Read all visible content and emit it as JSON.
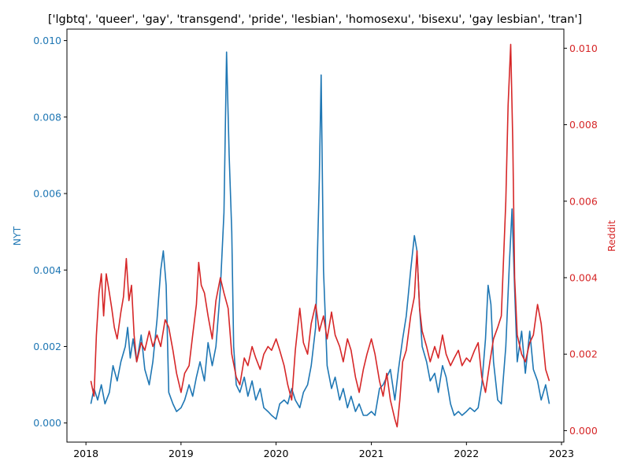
{
  "chart_data": {
    "type": "line",
    "title": "['lgbtq', 'queer', 'gay', 'transgend', 'pride', 'lesbian', 'homosexu', 'bisexu', 'gay lesbian', 'tran']",
    "x_ticks": [
      "2018",
      "2019",
      "2020",
      "2021",
      "2022",
      "2023"
    ],
    "x_range": [
      "2017-10-20",
      "2023-01-10"
    ],
    "left_axis": {
      "label": "NYT",
      "color": "#1f77b4",
      "ylim": [
        -0.0005,
        0.0103
      ],
      "ticks": [
        "0.000",
        "0.002",
        "0.004",
        "0.006",
        "0.008",
        "0.010"
      ]
    },
    "right_axis": {
      "label": "Reddit",
      "color": "#d62728",
      "ylim": [
        -0.0003,
        0.0105
      ],
      "ticks": [
        "0.000",
        "0.002",
        "0.004",
        "0.006",
        "0.008",
        "0.010"
      ]
    },
    "series": [
      {
        "axis": "left",
        "color": "#1f77b4",
        "points": [
          [
            "2018-01-20",
            0.0005
          ],
          [
            "2018-02-01",
            0.0009
          ],
          [
            "2018-02-15",
            0.0006
          ],
          [
            "2018-03-01",
            0.001
          ],
          [
            "2018-03-15",
            0.0005
          ],
          [
            "2018-04-01",
            0.0008
          ],
          [
            "2018-04-15",
            0.0015
          ],
          [
            "2018-05-01",
            0.0011
          ],
          [
            "2018-05-15",
            0.0016
          ],
          [
            "2018-06-01",
            0.002
          ],
          [
            "2018-06-10",
            0.0025
          ],
          [
            "2018-06-20",
            0.0017
          ],
          [
            "2018-07-01",
            0.0022
          ],
          [
            "2018-07-15",
            0.0016
          ],
          [
            "2018-08-01",
            0.0023
          ],
          [
            "2018-08-15",
            0.0014
          ],
          [
            "2018-09-01",
            0.001
          ],
          [
            "2018-09-15",
            0.0016
          ],
          [
            "2018-10-01",
            0.0027
          ],
          [
            "2018-10-15",
            0.004
          ],
          [
            "2018-10-25",
            0.0045
          ],
          [
            "2018-11-05",
            0.0036
          ],
          [
            "2018-11-15",
            0.0008
          ],
          [
            "2018-12-01",
            0.0005
          ],
          [
            "2018-12-15",
            0.0003
          ],
          [
            "2019-01-01",
            0.0004
          ],
          [
            "2019-01-15",
            0.0006
          ],
          [
            "2019-02-01",
            0.001
          ],
          [
            "2019-02-15",
            0.0007
          ],
          [
            "2019-03-01",
            0.0012
          ],
          [
            "2019-03-15",
            0.0016
          ],
          [
            "2019-04-01",
            0.0011
          ],
          [
            "2019-04-15",
            0.0021
          ],
          [
            "2019-05-01",
            0.0015
          ],
          [
            "2019-05-15",
            0.002
          ],
          [
            "2019-06-01",
            0.0035
          ],
          [
            "2019-06-15",
            0.0055
          ],
          [
            "2019-06-25",
            0.0097
          ],
          [
            "2019-07-05",
            0.007
          ],
          [
            "2019-07-15",
            0.005
          ],
          [
            "2019-07-22",
            0.002
          ],
          [
            "2019-08-01",
            0.001
          ],
          [
            "2019-08-15",
            0.0008
          ],
          [
            "2019-09-01",
            0.0012
          ],
          [
            "2019-09-15",
            0.0007
          ],
          [
            "2019-10-01",
            0.0011
          ],
          [
            "2019-10-15",
            0.0006
          ],
          [
            "2019-11-01",
            0.0009
          ],
          [
            "2019-11-15",
            0.0004
          ],
          [
            "2019-12-01",
            0.0003
          ],
          [
            "2019-12-15",
            0.0002
          ],
          [
            "2020-01-01",
            0.0001
          ],
          [
            "2020-01-15",
            0.0005
          ],
          [
            "2020-02-01",
            0.0006
          ],
          [
            "2020-02-15",
            0.0005
          ],
          [
            "2020-03-01",
            0.0009
          ],
          [
            "2020-03-15",
            0.0006
          ],
          [
            "2020-04-01",
            0.0004
          ],
          [
            "2020-04-15",
            0.0008
          ],
          [
            "2020-05-01",
            0.001
          ],
          [
            "2020-05-15",
            0.0015
          ],
          [
            "2020-06-01",
            0.0025
          ],
          [
            "2020-06-15",
            0.0064
          ],
          [
            "2020-06-22",
            0.0091
          ],
          [
            "2020-07-01",
            0.004
          ],
          [
            "2020-07-15",
            0.0015
          ],
          [
            "2020-08-01",
            0.0009
          ],
          [
            "2020-08-15",
            0.0012
          ],
          [
            "2020-09-01",
            0.0006
          ],
          [
            "2020-09-15",
            0.0009
          ],
          [
            "2020-10-01",
            0.0004
          ],
          [
            "2020-10-15",
            0.0007
          ],
          [
            "2020-11-01",
            0.0003
          ],
          [
            "2020-11-15",
            0.0005
          ],
          [
            "2020-12-01",
            0.0002
          ],
          [
            "2020-12-15",
            0.0002
          ],
          [
            "2021-01-01",
            0.0003
          ],
          [
            "2021-01-15",
            0.0002
          ],
          [
            "2021-02-01",
            0.0009
          ],
          [
            "2021-02-15",
            0.001
          ],
          [
            "2021-03-01",
            0.0012
          ],
          [
            "2021-03-15",
            0.0014
          ],
          [
            "2021-04-01",
            0.0006
          ],
          [
            "2021-04-15",
            0.0014
          ],
          [
            "2021-05-01",
            0.0022
          ],
          [
            "2021-05-15",
            0.0028
          ],
          [
            "2021-06-01",
            0.004
          ],
          [
            "2021-06-15",
            0.0049
          ],
          [
            "2021-06-25",
            0.0045
          ],
          [
            "2021-07-05",
            0.003
          ],
          [
            "2021-07-15",
            0.002
          ],
          [
            "2021-08-01",
            0.0016
          ],
          [
            "2021-08-15",
            0.0011
          ],
          [
            "2021-09-01",
            0.0013
          ],
          [
            "2021-09-15",
            0.0008
          ],
          [
            "2021-10-01",
            0.0015
          ],
          [
            "2021-10-15",
            0.0012
          ],
          [
            "2021-11-01",
            0.0005
          ],
          [
            "2021-11-15",
            0.0002
          ],
          [
            "2021-12-01",
            0.0003
          ],
          [
            "2021-12-15",
            0.0002
          ],
          [
            "2022-01-01",
            0.0003
          ],
          [
            "2022-01-15",
            0.0004
          ],
          [
            "2022-02-01",
            0.0003
          ],
          [
            "2022-02-15",
            0.0004
          ],
          [
            "2022-03-01",
            0.001
          ],
          [
            "2022-03-15",
            0.0022
          ],
          [
            "2022-03-25",
            0.0036
          ],
          [
            "2022-04-05",
            0.0031
          ],
          [
            "2022-04-15",
            0.0016
          ],
          [
            "2022-05-01",
            0.0006
          ],
          [
            "2022-05-15",
            0.0005
          ],
          [
            "2022-06-01",
            0.002
          ],
          [
            "2022-06-15",
            0.0042
          ],
          [
            "2022-06-25",
            0.0056
          ],
          [
            "2022-07-05",
            0.0035
          ],
          [
            "2022-07-15",
            0.0016
          ],
          [
            "2022-08-01",
            0.0024
          ],
          [
            "2022-08-15",
            0.0013
          ],
          [
            "2022-09-01",
            0.0024
          ],
          [
            "2022-09-15",
            0.0014
          ],
          [
            "2022-10-01",
            0.0011
          ],
          [
            "2022-10-15",
            0.0006
          ],
          [
            "2022-11-01",
            0.001
          ],
          [
            "2022-11-15",
            0.0005
          ]
        ]
      },
      {
        "axis": "right",
        "color": "#d62728",
        "points": [
          [
            "2018-01-20",
            0.0013
          ],
          [
            "2018-02-01",
            0.0009
          ],
          [
            "2018-02-10",
            0.0025
          ],
          [
            "2018-02-20",
            0.0036
          ],
          [
            "2018-03-01",
            0.0041
          ],
          [
            "2018-03-10",
            0.003
          ],
          [
            "2018-03-20",
            0.0041
          ],
          [
            "2018-04-01",
            0.0036
          ],
          [
            "2018-04-10",
            0.0032
          ],
          [
            "2018-04-20",
            0.0027
          ],
          [
            "2018-05-01",
            0.0024
          ],
          [
            "2018-05-15",
            0.0031
          ],
          [
            "2018-05-25",
            0.0035
          ],
          [
            "2018-06-05",
            0.0045
          ],
          [
            "2018-06-15",
            0.0034
          ],
          [
            "2018-06-25",
            0.0038
          ],
          [
            "2018-07-05",
            0.0025
          ],
          [
            "2018-07-15",
            0.0018
          ],
          [
            "2018-08-01",
            0.0023
          ],
          [
            "2018-08-15",
            0.0021
          ],
          [
            "2018-09-01",
            0.0026
          ],
          [
            "2018-09-15",
            0.0022
          ],
          [
            "2018-10-01",
            0.0025
          ],
          [
            "2018-10-15",
            0.0022
          ],
          [
            "2018-11-01",
            0.0029
          ],
          [
            "2018-11-15",
            0.0027
          ],
          [
            "2018-12-01",
            0.0021
          ],
          [
            "2018-12-15",
            0.0015
          ],
          [
            "2019-01-01",
            0.001
          ],
          [
            "2019-01-15",
            0.0015
          ],
          [
            "2019-02-01",
            0.0017
          ],
          [
            "2019-02-15",
            0.0025
          ],
          [
            "2019-03-01",
            0.0033
          ],
          [
            "2019-03-10",
            0.0044
          ],
          [
            "2019-03-20",
            0.0038
          ],
          [
            "2019-04-01",
            0.0036
          ],
          [
            "2019-04-15",
            0.003
          ],
          [
            "2019-05-01",
            0.0024
          ],
          [
            "2019-05-15",
            0.0034
          ],
          [
            "2019-06-01",
            0.004
          ],
          [
            "2019-06-15",
            0.0036
          ],
          [
            "2019-07-01",
            0.0032
          ],
          [
            "2019-07-15",
            0.002
          ],
          [
            "2019-08-01",
            0.0014
          ],
          [
            "2019-08-15",
            0.0012
          ],
          [
            "2019-09-01",
            0.0019
          ],
          [
            "2019-09-15",
            0.0017
          ],
          [
            "2019-10-01",
            0.0022
          ],
          [
            "2019-10-15",
            0.0019
          ],
          [
            "2019-11-01",
            0.0016
          ],
          [
            "2019-11-15",
            0.002
          ],
          [
            "2019-12-01",
            0.0022
          ],
          [
            "2019-12-15",
            0.0021
          ],
          [
            "2020-01-01",
            0.0024
          ],
          [
            "2020-01-15",
            0.0021
          ],
          [
            "2020-02-01",
            0.0017
          ],
          [
            "2020-02-15",
            0.0012
          ],
          [
            "2020-03-01",
            0.0008
          ],
          [
            "2020-03-15",
            0.0021
          ],
          [
            "2020-04-01",
            0.0032
          ],
          [
            "2020-04-15",
            0.0023
          ],
          [
            "2020-05-01",
            0.002
          ],
          [
            "2020-05-15",
            0.0028
          ],
          [
            "2020-06-01",
            0.0033
          ],
          [
            "2020-06-15",
            0.0026
          ],
          [
            "2020-07-01",
            0.003
          ],
          [
            "2020-07-15",
            0.0024
          ],
          [
            "2020-08-01",
            0.0031
          ],
          [
            "2020-08-15",
            0.0025
          ],
          [
            "2020-09-01",
            0.0022
          ],
          [
            "2020-09-15",
            0.0018
          ],
          [
            "2020-10-01",
            0.0024
          ],
          [
            "2020-10-15",
            0.0021
          ],
          [
            "2020-11-01",
            0.0014
          ],
          [
            "2020-11-15",
            0.001
          ],
          [
            "2020-12-01",
            0.0016
          ],
          [
            "2020-12-15",
            0.002
          ],
          [
            "2021-01-01",
            0.0024
          ],
          [
            "2021-01-15",
            0.002
          ],
          [
            "2021-02-01",
            0.0013
          ],
          [
            "2021-02-15",
            0.0009
          ],
          [
            "2021-03-01",
            0.0015
          ],
          [
            "2021-03-15",
            0.0008
          ],
          [
            "2021-04-01",
            0.0003
          ],
          [
            "2021-04-10",
            0.0001
          ],
          [
            "2021-04-20",
            0.0008
          ],
          [
            "2021-05-01",
            0.0018
          ],
          [
            "2021-05-15",
            0.0021
          ],
          [
            "2021-06-01",
            0.003
          ],
          [
            "2021-06-15",
            0.0035
          ],
          [
            "2021-06-25",
            0.0047
          ],
          [
            "2021-07-05",
            0.0032
          ],
          [
            "2021-07-15",
            0.0026
          ],
          [
            "2021-08-01",
            0.0022
          ],
          [
            "2021-08-15",
            0.0018
          ],
          [
            "2021-09-01",
            0.0022
          ],
          [
            "2021-09-15",
            0.0019
          ],
          [
            "2021-10-01",
            0.0025
          ],
          [
            "2021-10-15",
            0.002
          ],
          [
            "2021-11-01",
            0.0017
          ],
          [
            "2021-11-15",
            0.0019
          ],
          [
            "2021-12-01",
            0.0021
          ],
          [
            "2021-12-15",
            0.0017
          ],
          [
            "2022-01-01",
            0.0019
          ],
          [
            "2022-01-15",
            0.0018
          ],
          [
            "2022-02-01",
            0.0021
          ],
          [
            "2022-02-15",
            0.0023
          ],
          [
            "2022-03-01",
            0.0014
          ],
          [
            "2022-03-15",
            0.001
          ],
          [
            "2022-04-01",
            0.0018
          ],
          [
            "2022-04-15",
            0.0024
          ],
          [
            "2022-05-01",
            0.0027
          ],
          [
            "2022-05-15",
            0.003
          ],
          [
            "2022-06-01",
            0.006
          ],
          [
            "2022-06-10",
            0.0085
          ],
          [
            "2022-06-20",
            0.0101
          ],
          [
            "2022-06-28",
            0.0075
          ],
          [
            "2022-07-05",
            0.004
          ],
          [
            "2022-07-15",
            0.0025
          ],
          [
            "2022-08-01",
            0.002
          ],
          [
            "2022-08-15",
            0.0018
          ],
          [
            "2022-09-01",
            0.0023
          ],
          [
            "2022-09-15",
            0.0025
          ],
          [
            "2022-10-01",
            0.0033
          ],
          [
            "2022-10-15",
            0.0028
          ],
          [
            "2022-11-01",
            0.0016
          ],
          [
            "2022-11-15",
            0.0013
          ]
        ]
      }
    ]
  }
}
